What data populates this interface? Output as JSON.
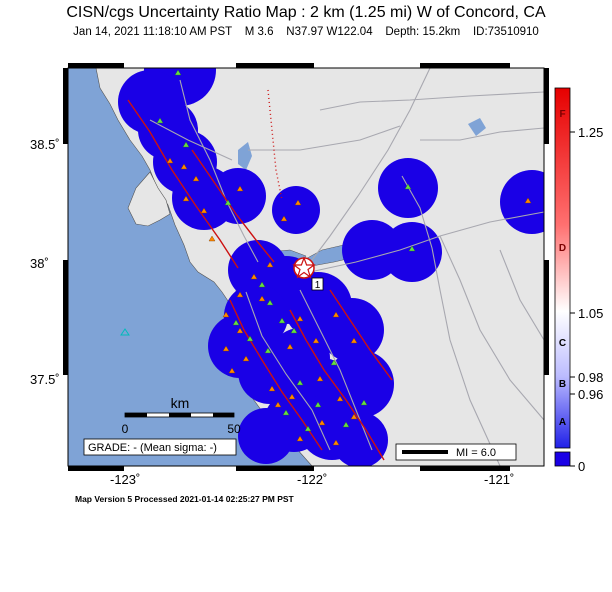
{
  "title": "CISN/cgs Uncertainty Ratio Map : 2 km (1.25 mi) W of Concord, CA",
  "subtitle": {
    "datetime": "Jan 14, 2021 11:18:10 AM PST",
    "magnitude": "M 3.6",
    "location": "N37.97 W122.04",
    "depth": "Depth: 15.2km",
    "event_id": "ID:73510910"
  },
  "map": {
    "lat_labels": [
      "38.5˚",
      "38˚",
      "37.5˚"
    ],
    "lon_labels": [
      "-123˚",
      "-122˚",
      "-121˚"
    ],
    "scalebar": {
      "unit": "km",
      "ticks": [
        "0",
        "50"
      ]
    },
    "grade_text": "GRADE: - (Mean sigma: -)",
    "mi_legend": "MI = 6.0",
    "epicenter_label": "1",
    "colors": {
      "water": "#7fa3d6",
      "land": "#e8e8e8",
      "coverage": "#1a00e6",
      "fault": "#cc1111",
      "road": "#a8a8b0",
      "station": "#66dd44",
      "site": "#ff8800"
    }
  },
  "colorbar": {
    "letters": [
      "F",
      "D",
      "C",
      "B",
      "A"
    ],
    "values": [
      "1.25",
      "1.05",
      "0.98",
      "0.96",
      "0"
    ]
  },
  "footer": "Map Version 5 Processed 2021-01-14 02:25:27 PM PST"
}
